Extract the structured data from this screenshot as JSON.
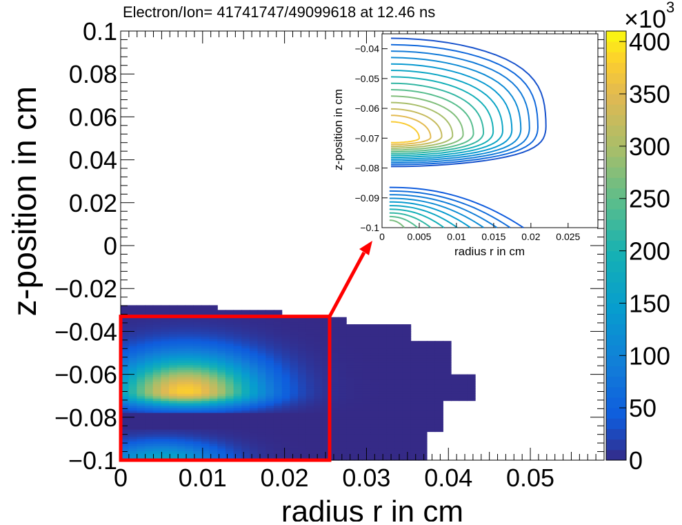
{
  "chart_data": [
    {
      "type": "heatmap",
      "title": "Electron/Ion= 41741747/49099618 at 12.46 ns",
      "xlabel": "radius r in cm",
      "ylabel": "z-position in cm",
      "xlim": [
        0,
        0.059
      ],
      "ylim": [
        -0.1,
        0.1
      ],
      "xticks": [
        "0",
        "0.01",
        "0.02",
        "0.03",
        "0.04",
        "0.05"
      ],
      "yticks": [
        "−0.1",
        "−0.08",
        "−0.06",
        "−0.04",
        "−0.02",
        "0",
        "0.02",
        "0.04",
        "0.06",
        "0.08",
        "0.1"
      ],
      "colorbar": {
        "range": [
          0,
          410000
        ],
        "ticks": [
          "0",
          "50",
          "100",
          "150",
          "200",
          "250",
          "300",
          "350",
          "400"
        ],
        "multiplier": "×10",
        "exponent": "3"
      },
      "peak": {
        "r": 0.008,
        "z": -0.068,
        "value": 380000
      },
      "highlight_box": {
        "r": [
          0,
          0.0255
        ],
        "z": [
          -0.1,
          -0.033
        ]
      },
      "colors": {
        "low": "#2a3ea4",
        "high": "#f5e93a",
        "box": "#ff0000"
      }
    },
    {
      "type": "contour",
      "xlabel": "radius r in cm",
      "ylabel": "z-position in cm",
      "xlim": [
        0,
        0.029
      ],
      "ylim": [
        -0.1,
        -0.035
      ],
      "xticks": [
        "0",
        "0.005",
        "0.01",
        "0.015",
        "0.02",
        "0.025"
      ],
      "yticks": [
        "−0.1",
        "−0.09",
        "−0.08",
        "−0.07",
        "−0.06",
        "−0.05",
        "−0.04"
      ],
      "levels": 14
    }
  ]
}
